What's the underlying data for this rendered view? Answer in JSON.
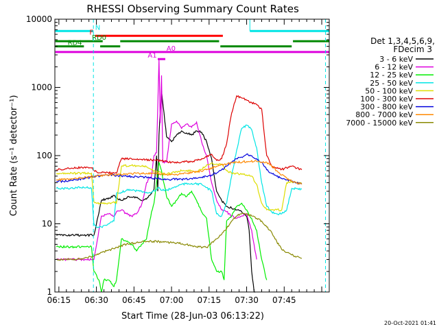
{
  "chart_data": {
    "type": "line",
    "title": "RHESSI Observing Summary Count Rates",
    "ylabel": "Count Rate (s⁻¹ detector⁻¹)",
    "xlabel": "Start Time (28-Jun-03 06:13:22)",
    "yscale": "log",
    "ylim": [
      1,
      10000
    ],
    "xlim_minutes": [
      373.4,
      483.0
    ],
    "y_ticks": [
      {
        "v": 1,
        "label": "1"
      },
      {
        "v": 10,
        "label": "10"
      },
      {
        "v": 100,
        "label": "100"
      },
      {
        "v": 1000,
        "label": "1000"
      },
      {
        "v": 10000,
        "label": "10000"
      }
    ],
    "x_ticks": [
      {
        "v": 375,
        "label": "06:15"
      },
      {
        "v": 390,
        "label": "06:30"
      },
      {
        "v": 405,
        "label": "06:45"
      },
      {
        "v": 420,
        "label": "07:00"
      },
      {
        "v": 435,
        "label": "07:15"
      },
      {
        "v": 450,
        "label": "07:30"
      },
      {
        "v": 465,
        "label": "07:45"
      }
    ],
    "legend_header": [
      "Det 1,3,4,5,6,9,",
      "FDecim 3"
    ],
    "legend_position": "right",
    "vlines_dashed_minutes": [
      388.8,
      481.5
    ],
    "vline_solid_minutes": [
      451.3
    ],
    "flag_bars": [
      {
        "label": "N",
        "color": "#00e5e5",
        "y": 6700,
        "segments": [
          [
            373.6,
            388.8
          ],
          [
            451.3,
            483.0
          ]
        ],
        "label_at": 389.5
      },
      {
        "label": "F",
        "color": "#ff0000",
        "y": 5700,
        "segments": [
          [
            389.5,
            440.5
          ]
        ],
        "label_at": 387.2
      },
      {
        "label": "RD0",
        "color": "#008800",
        "y": 4750,
        "segments": [
          [
            373.6,
            392.5
          ],
          [
            399.5,
            439.0
          ],
          [
            468.5,
            483.0
          ]
        ],
        "label_at": 388.2
      },
      {
        "label": "RD4",
        "color": "#008800",
        "y": 4000,
        "segments": [
          [
            373.6,
            385.0
          ],
          [
            391.5,
            399.5
          ],
          [
            439.5,
            468.0
          ]
        ],
        "label_at": 378.5
      },
      {
        "label": "A0",
        "color": "#dd00dd",
        "y": 3300,
        "segments": [
          [
            373.6,
            483.0
          ]
        ],
        "label_at": 418.0
      },
      {
        "label": "A1",
        "color": "#dd00dd",
        "y": 2600,
        "segments": [
          [
            414.5,
            417.5
          ]
        ],
        "label_at": 410.5
      }
    ],
    "series": [
      {
        "name": "3 - 6 keV",
        "color": "#000000",
        "x": [
          374,
          380,
          386,
          389,
          392,
          395,
          397,
          398,
          400,
          403,
          405,
          408,
          410,
          412,
          413,
          414,
          414.5,
          415,
          416,
          418,
          420,
          422,
          424,
          426,
          428,
          430,
          432,
          434,
          436,
          438,
          440,
          442,
          444,
          446,
          448,
          450,
          451,
          452,
          453,
          453.5
        ],
        "y": [
          6.8,
          6.8,
          6.8,
          6.8,
          22,
          24,
          26,
          24,
          22,
          25,
          25,
          22,
          23,
          28,
          32,
          100,
          30,
          200,
          900,
          190,
          160,
          200,
          230,
          215,
          200,
          230,
          220,
          160,
          90,
          30,
          22,
          18,
          17,
          16,
          15,
          13,
          8,
          2,
          1,
          1
        ]
      },
      {
        "name": "6 - 12 keV",
        "color": "#dd00dd",
        "x": [
          374,
          380,
          386,
          389,
          392,
          395,
          397,
          398,
          400,
          402,
          404,
          406,
          408,
          409,
          410,
          412,
          413,
          414,
          415,
          415.5,
          416,
          416.5,
          418,
          420,
          422,
          424,
          426,
          428,
          430,
          432,
          434,
          436,
          438,
          440,
          442,
          444,
          446,
          448,
          450,
          452,
          454
        ],
        "y": [
          3,
          3,
          3,
          3,
          13,
          14,
          13,
          15,
          16,
          14,
          13,
          14,
          19,
          26,
          40,
          50,
          100,
          110,
          2600,
          300,
          1500,
          80,
          80,
          290,
          320,
          250,
          290,
          260,
          310,
          160,
          100,
          40,
          22,
          16,
          15,
          13,
          12,
          13,
          14,
          8,
          3
        ]
      },
      {
        "name": "12 - 25 keV",
        "color": "#00ee00",
        "x": [
          374,
          380,
          386,
          388,
          389,
          391,
          392,
          393,
          395,
          397,
          398,
          400,
          402,
          404,
          405,
          406,
          408,
          410,
          412,
          413,
          414,
          415,
          416,
          418,
          420,
          422,
          424,
          426,
          428,
          430,
          432,
          434,
          436,
          438,
          440,
          441,
          442,
          444,
          446,
          448,
          450,
          452,
          454,
          456,
          458
        ],
        "y": [
          4.6,
          4.6,
          4.6,
          4.6,
          2,
          1.5,
          1,
          1.5,
          1.5,
          1.2,
          1.5,
          6,
          5.5,
          5,
          4.5,
          4,
          5,
          6,
          15,
          20,
          40,
          80,
          60,
          25,
          18,
          22,
          28,
          25,
          30,
          22,
          15,
          12,
          3,
          2,
          2,
          1.5,
          11,
          13,
          18,
          20,
          16,
          12,
          8,
          3,
          1.5
        ]
      },
      {
        "name": "25 - 50 keV",
        "color": "#00e5e5",
        "x": [
          374,
          378,
          382,
          386,
          388,
          389,
          390,
          392,
          395,
          397,
          398,
          400,
          402,
          404,
          408,
          410,
          412,
          414,
          415,
          416,
          418,
          420,
          424,
          428,
          432,
          434,
          436,
          438,
          440,
          442,
          444,
          446,
          448,
          450,
          452,
          454,
          456,
          458,
          460,
          462,
          464,
          466,
          468,
          470,
          472
        ],
        "y": [
          33,
          33,
          34,
          34,
          33,
          10,
          9,
          9,
          10,
          11,
          28,
          29,
          31,
          31,
          30,
          29,
          29,
          32,
          34,
          31,
          31,
          33,
          38,
          39,
          38,
          34,
          30,
          14,
          13,
          20,
          50,
          120,
          250,
          280,
          240,
          130,
          40,
          18,
          15,
          14,
          14,
          16,
          33,
          33,
          32
        ]
      },
      {
        "name": "50 - 100 keV",
        "color": "#dddd00",
        "x": [
          374,
          378,
          382,
          386,
          388,
          389,
          390,
          392,
          395,
          397,
          398,
          400,
          404,
          408,
          410,
          412,
          414,
          416,
          418,
          420,
          424,
          428,
          430,
          432,
          434,
          436,
          438,
          440,
          442,
          444,
          446,
          448,
          450,
          452,
          454,
          456,
          458,
          460,
          462,
          464,
          466,
          468,
          470,
          472
        ],
        "y": [
          55,
          55,
          55,
          55,
          55,
          21,
          20,
          20,
          20,
          21,
          20,
          70,
          72,
          70,
          68,
          62,
          58,
          55,
          53,
          56,
          60,
          60,
          58,
          63,
          73,
          78,
          75,
          75,
          60,
          55,
          55,
          53,
          52,
          50,
          38,
          20,
          16,
          16,
          16,
          16,
          40,
          41,
          40,
          39
        ]
      },
      {
        "name": "100 - 300 keV",
        "color": "#dd0000",
        "x": [
          374,
          378,
          382,
          386,
          388,
          390,
          392,
          396,
          398,
          400,
          404,
          408,
          412,
          416,
          420,
          424,
          428,
          432,
          434,
          436,
          438,
          440,
          442,
          444,
          446,
          448,
          450,
          452,
          454,
          456,
          458,
          460,
          462,
          464,
          466,
          468,
          470,
          472
        ],
        "y": [
          62,
          64,
          66,
          68,
          66,
          58,
          56,
          56,
          55,
          90,
          90,
          88,
          86,
          84,
          80,
          80,
          82,
          90,
          95,
          105,
          85,
          90,
          150,
          420,
          750,
          700,
          650,
          600,
          560,
          480,
          100,
          70,
          65,
          63,
          66,
          70,
          65,
          62
        ]
      },
      {
        "name": "300 - 800 keV",
        "color": "#0000dd",
        "x": [
          374,
          378,
          382,
          386,
          390,
          394,
          398,
          402,
          406,
          410,
          414,
          418,
          420,
          424,
          428,
          432,
          436,
          438,
          440,
          442,
          444,
          446,
          448,
          450,
          452,
          454,
          456,
          458,
          460,
          462,
          464,
          466,
          468,
          470,
          472
        ],
        "y": [
          42,
          42,
          44,
          47,
          50,
          52,
          51,
          50,
          49,
          48,
          46,
          45,
          45,
          45,
          46,
          48,
          52,
          55,
          62,
          70,
          80,
          90,
          95,
          105,
          100,
          90,
          80,
          62,
          55,
          50,
          46,
          44,
          42,
          40,
          38
        ]
      },
      {
        "name": "800 - 7000 keV",
        "color": "#ff8800",
        "x": [
          374,
          378,
          382,
          386,
          390,
          394,
          398,
          402,
          406,
          410,
          414,
          418,
          422,
          426,
          430,
          434,
          438,
          442,
          446,
          450,
          454,
          458,
          460,
          462,
          464,
          466,
          468,
          470,
          472
        ],
        "y": [
          44,
          45,
          46,
          48,
          50,
          52,
          53,
          54,
          55,
          55,
          54,
          53,
          53,
          55,
          58,
          62,
          70,
          75,
          80,
          82,
          82,
          80,
          70,
          60,
          52,
          47,
          42,
          40,
          38
        ]
      },
      {
        "name": "7000 - 15000 keV",
        "color": "#888800",
        "x": [
          374,
          378,
          382,
          386,
          390,
          394,
          398,
          402,
          406,
          410,
          414,
          418,
          422,
          426,
          430,
          434,
          438,
          440,
          442,
          444,
          446,
          448,
          450,
          452,
          454,
          456,
          458,
          460,
          462,
          464,
          466,
          468,
          470,
          472
        ],
        "y": [
          3,
          3,
          3,
          3.2,
          3.5,
          4,
          4.5,
          5,
          5.3,
          5.5,
          5.5,
          5.4,
          5.2,
          5,
          4.6,
          4.5,
          6,
          7,
          8.5,
          11,
          13,
          14,
          14,
          13,
          12,
          11,
          9,
          7.5,
          5.5,
          4.2,
          3.8,
          3.5,
          3.3,
          3.1
        ]
      }
    ],
    "timestamp": "20-Oct-2021 01:41"
  }
}
